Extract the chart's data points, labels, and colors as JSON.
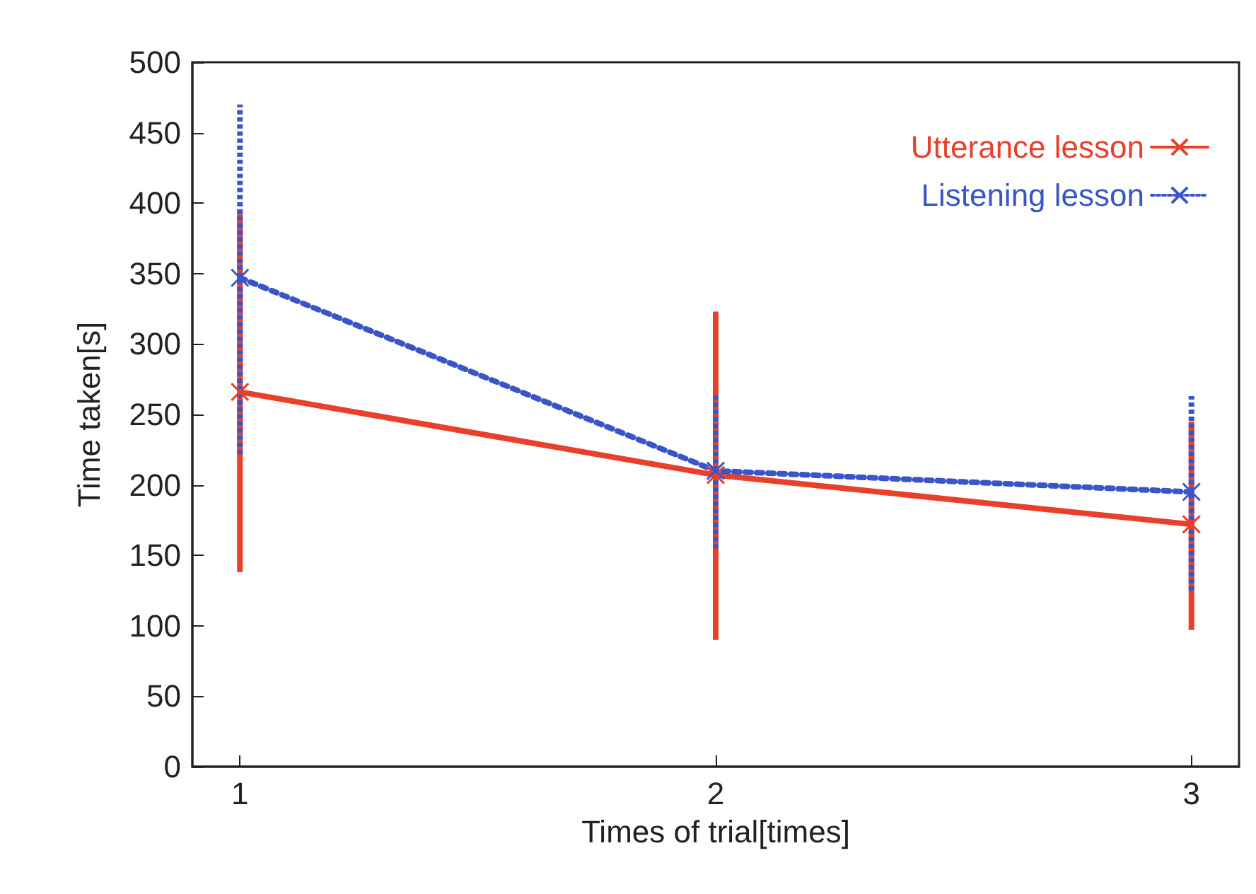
{
  "chart_data": {
    "type": "line",
    "xlabel": "Times of trial[times]",
    "ylabel": "Time taken[s]",
    "x": [
      1,
      2,
      3
    ],
    "xlim": [
      0.9,
      3.1
    ],
    "xticks": [
      1,
      2,
      3
    ],
    "ylim": [
      0,
      500
    ],
    "yticks": [
      0,
      50,
      100,
      150,
      200,
      250,
      300,
      350,
      400,
      450,
      500
    ],
    "grid": false,
    "legend": "top right",
    "marker": "cross",
    "series": [
      {
        "name": "Utterance lesson",
        "color": "#e8402a",
        "line_style": "solid",
        "values": [
          266,
          207,
          172
        ],
        "errors": [
          [
            138,
            394
          ],
          [
            90,
            323
          ],
          [
            97,
            245
          ]
        ]
      },
      {
        "name": "Listening lesson",
        "color": "#3a55c8",
        "line_style": "dotted",
        "values": [
          347,
          210,
          195
        ],
        "errors": [
          [
            222,
            470
          ],
          [
            155,
            265
          ],
          [
            125,
            263
          ]
        ]
      }
    ]
  }
}
